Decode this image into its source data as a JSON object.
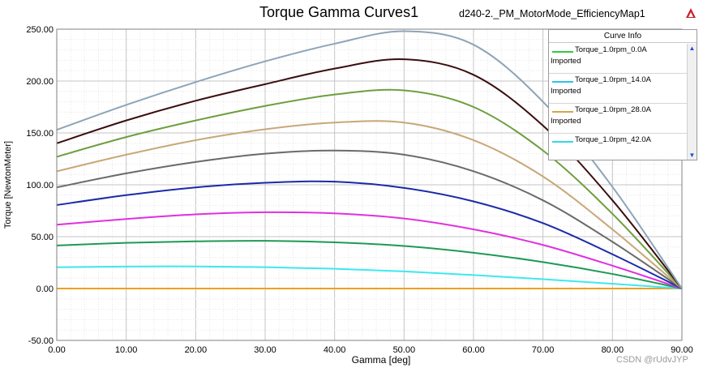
{
  "header": {
    "title": "Torque Gamma Curves1",
    "design": "d240-2._PM_MotorMode_EfficiencyMap1"
  },
  "legend": {
    "header": "Curve Info",
    "entries": [
      {
        "name": "Torque_1.0rpm_0.0A",
        "sub": "Imported",
        "color": "#2ecc40"
      },
      {
        "name": "Torque_1.0rpm_14.0A",
        "sub": "Imported",
        "color": "#29c6e8"
      },
      {
        "name": "Torque_1.0rpm_28.0A",
        "sub": "Imported",
        "color": "#d4a64a"
      },
      {
        "name": "Torque_1.0rpm_42.0A",
        "sub": "",
        "color": "#33d9e8"
      }
    ]
  },
  "watermark": "CSDN @rUdvJYP",
  "chart_data": {
    "type": "line",
    "title": "Torque Gamma Curves1",
    "xlabel": "Gamma [deg]",
    "ylabel": "Torque [NewtonMeter]",
    "xlim": [
      0,
      90
    ],
    "ylim": [
      -50,
      250
    ],
    "xticks": [
      "0.00",
      "10.00",
      "20.00",
      "30.00",
      "40.00",
      "50.00",
      "60.00",
      "70.00",
      "80.00",
      "90.00"
    ],
    "yticks": [
      "-50.00",
      "0.00",
      "50.00",
      "100.00",
      "150.00",
      "200.00",
      "250.00"
    ],
    "grid": true,
    "legend_position": "top-right",
    "series": [
      {
        "color": "#f0a020",
        "points": [
          [
            0,
            0
          ],
          [
            45,
            0
          ],
          [
            90,
            0
          ]
        ]
      },
      {
        "color": "#3ee8ee",
        "points": [
          [
            0,
            20.5
          ],
          [
            10,
            21.2
          ],
          [
            20,
            21.3
          ],
          [
            30,
            20.6
          ],
          [
            40,
            19
          ],
          [
            50,
            16.5
          ],
          [
            60,
            13
          ],
          [
            70,
            9
          ],
          [
            80,
            4.6
          ],
          [
            90,
            0
          ]
        ]
      },
      {
        "color": "#1d9a55",
        "points": [
          [
            0,
            41.5
          ],
          [
            10,
            44
          ],
          [
            20,
            45.5
          ],
          [
            30,
            46
          ],
          [
            40,
            44.5
          ],
          [
            50,
            41
          ],
          [
            60,
            34.5
          ],
          [
            70,
            25.5
          ],
          [
            80,
            14
          ],
          [
            90,
            0
          ]
        ]
      },
      {
        "color": "#e030e0",
        "points": [
          [
            0,
            61.5
          ],
          [
            10,
            67
          ],
          [
            20,
            71.5
          ],
          [
            30,
            73.5
          ],
          [
            40,
            72.5
          ],
          [
            50,
            67.5
          ],
          [
            60,
            57
          ],
          [
            70,
            42
          ],
          [
            80,
            22
          ],
          [
            90,
            0
          ]
        ]
      },
      {
        "color": "#1a2aa8",
        "points": [
          [
            0,
            80.5
          ],
          [
            10,
            90
          ],
          [
            20,
            97.5
          ],
          [
            30,
            102
          ],
          [
            40,
            103
          ],
          [
            50,
            97
          ],
          [
            60,
            84
          ],
          [
            70,
            63
          ],
          [
            80,
            33
          ],
          [
            90,
            0
          ]
        ]
      },
      {
        "color": "#6a6a6a",
        "points": [
          [
            0,
            97.5
          ],
          [
            10,
            111
          ],
          [
            20,
            122
          ],
          [
            30,
            130
          ],
          [
            40,
            133
          ],
          [
            50,
            129
          ],
          [
            60,
            113
          ],
          [
            70,
            85
          ],
          [
            80,
            45
          ],
          [
            90,
            0
          ]
        ]
      },
      {
        "color": "#c8a878",
        "points": [
          [
            0,
            113
          ],
          [
            10,
            129
          ],
          [
            20,
            143
          ],
          [
            30,
            153.5
          ],
          [
            40,
            160
          ],
          [
            50,
            160
          ],
          [
            60,
            143
          ],
          [
            70,
            108
          ],
          [
            80,
            57
          ],
          [
            90,
            0
          ]
        ]
      },
      {
        "color": "#6e9e3e",
        "points": [
          [
            0,
            127
          ],
          [
            10,
            146
          ],
          [
            20,
            162
          ],
          [
            30,
            176
          ],
          [
            40,
            187
          ],
          [
            50,
            191
          ],
          [
            60,
            175
          ],
          [
            70,
            133
          ],
          [
            80,
            72
          ],
          [
            90,
            0
          ]
        ]
      },
      {
        "color": "#3a0e0e",
        "points": [
          [
            0,
            140
          ],
          [
            10,
            162
          ],
          [
            20,
            181
          ],
          [
            30,
            197
          ],
          [
            40,
            212
          ],
          [
            50,
            221
          ],
          [
            60,
            206
          ],
          [
            70,
            157
          ],
          [
            80,
            85
          ],
          [
            90,
            0
          ]
        ]
      },
      {
        "color": "#8ea4b8",
        "points": [
          [
            0,
            153
          ],
          [
            10,
            177
          ],
          [
            20,
            199
          ],
          [
            30,
            219
          ],
          [
            40,
            236
          ],
          [
            50,
            248
          ],
          [
            60,
            235
          ],
          [
            70,
            180
          ],
          [
            80,
            98
          ],
          [
            90,
            0
          ]
        ]
      }
    ]
  }
}
